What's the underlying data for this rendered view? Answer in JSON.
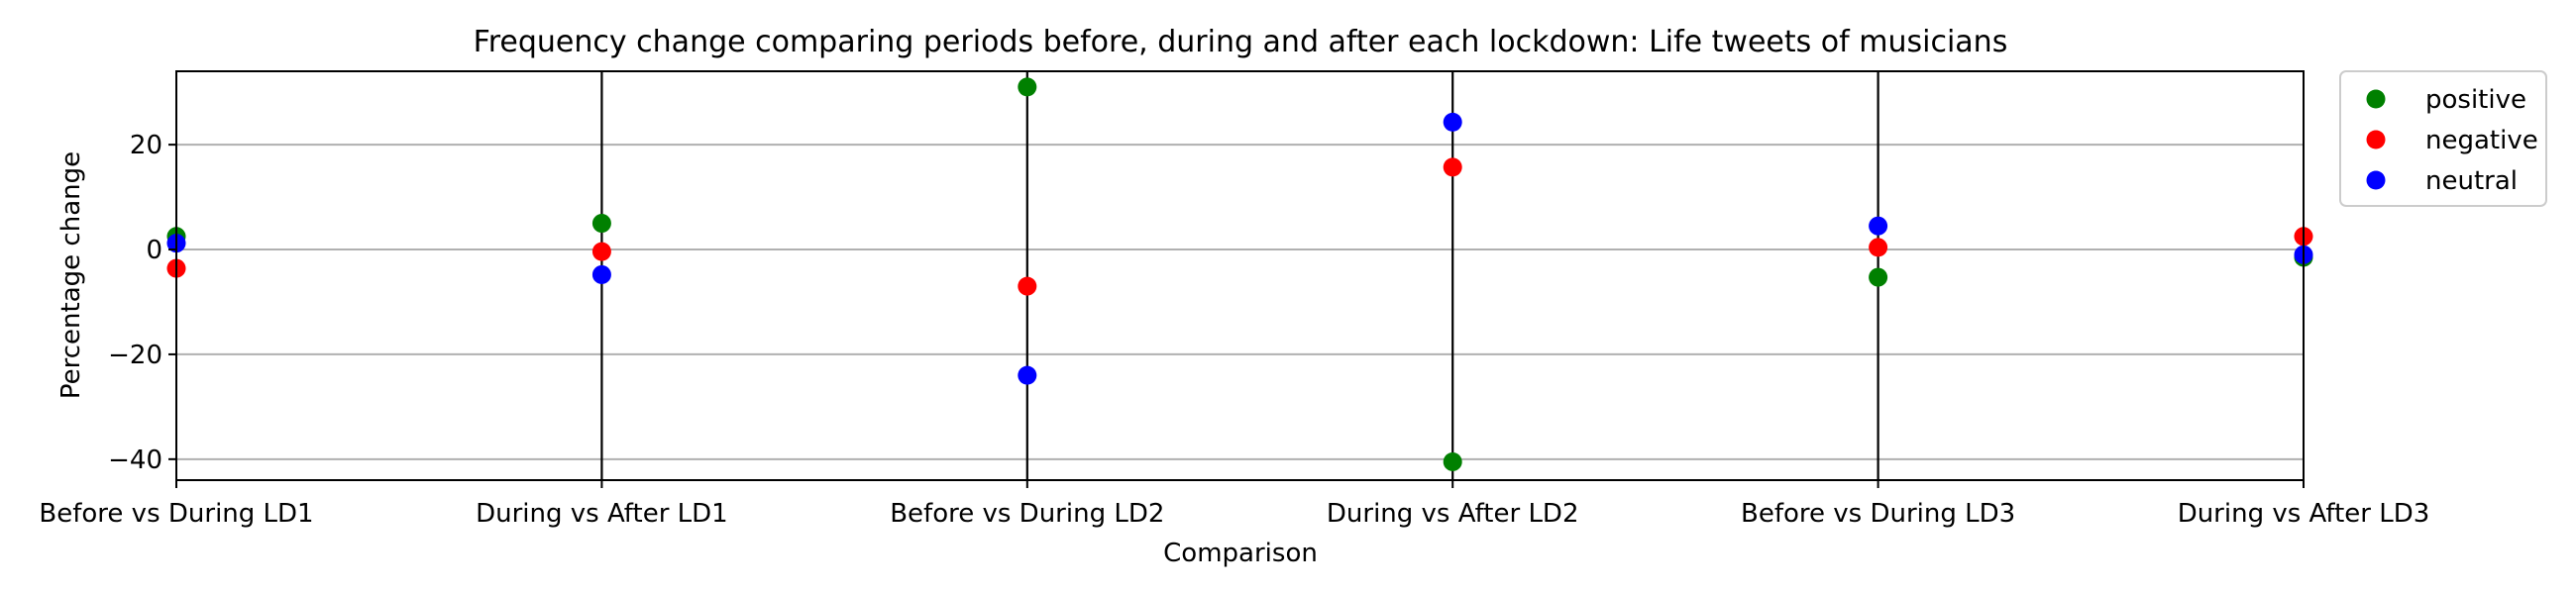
{
  "chart_data": {
    "type": "scatter",
    "title": "Frequency change comparing periods before, during and after each lockdown: Life tweets of musicians",
    "xlabel": "Comparison",
    "ylabel": "Percentage change",
    "categories": [
      "Before vs During LD1",
      "During vs After LD1",
      "Before vs During LD2",
      "During vs After LD2",
      "Before vs During LD3",
      "During vs After LD3"
    ],
    "ylim": [
      -44,
      34
    ],
    "yticks": [
      -40,
      -20,
      0,
      20
    ],
    "grid": "horizontal",
    "legend_position": "outside top-right",
    "series": [
      {
        "name": "positive",
        "color": "#008000",
        "values": [
          2.5,
          5,
          31,
          -40.5,
          -5.3,
          -1.5
        ]
      },
      {
        "name": "negative",
        "color": "#ff0000",
        "values": [
          -3.6,
          -0.4,
          -7,
          15.7,
          0.4,
          2.5
        ]
      },
      {
        "name": "neutral",
        "color": "#0000ff",
        "values": [
          1.2,
          -4.8,
          -24,
          24.3,
          4.5,
          -1
        ]
      }
    ]
  }
}
